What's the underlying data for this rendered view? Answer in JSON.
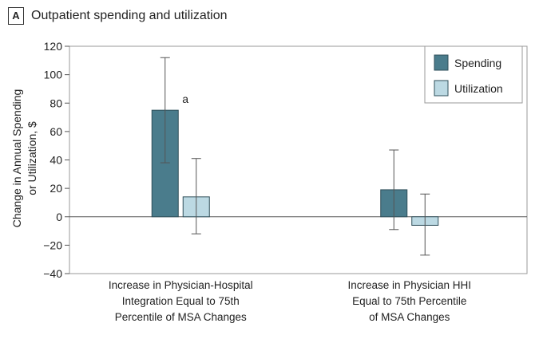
{
  "panel": {
    "letter": "A",
    "title": "Outpatient spending and utilization"
  },
  "chart_data": {
    "type": "bar",
    "ylabel": "Change in Annual Spending or Utilization, $",
    "ylabel_lines": [
      "Change in Annual Spending",
      "or Utilization, $"
    ],
    "ylim": [
      -40,
      120
    ],
    "yticks": [
      -40,
      -20,
      0,
      20,
      40,
      60,
      80,
      100,
      120
    ],
    "categories": [
      {
        "lines": [
          "Increase in Physician-Hospital",
          "Integration Equal to 75th",
          "Percentile of MSA Changes"
        ]
      },
      {
        "lines": [
          "Increase in Physician HHI",
          "Equal to 75th Percentile",
          "of MSA Changes"
        ]
      }
    ],
    "series": [
      {
        "name": "Spending",
        "color": "#4a7c8c",
        "values": [
          75,
          19
        ],
        "ci_low": [
          38,
          -9
        ],
        "ci_high": [
          112,
          47
        ],
        "annotations": [
          "a",
          ""
        ]
      },
      {
        "name": "Utilization",
        "color": "#bcd9e3",
        "values": [
          14,
          -6
        ],
        "ci_low": [
          -12,
          -27
        ],
        "ci_high": [
          41,
          16
        ],
        "annotations": [
          "",
          ""
        ]
      }
    ],
    "legend": "top-right"
  }
}
